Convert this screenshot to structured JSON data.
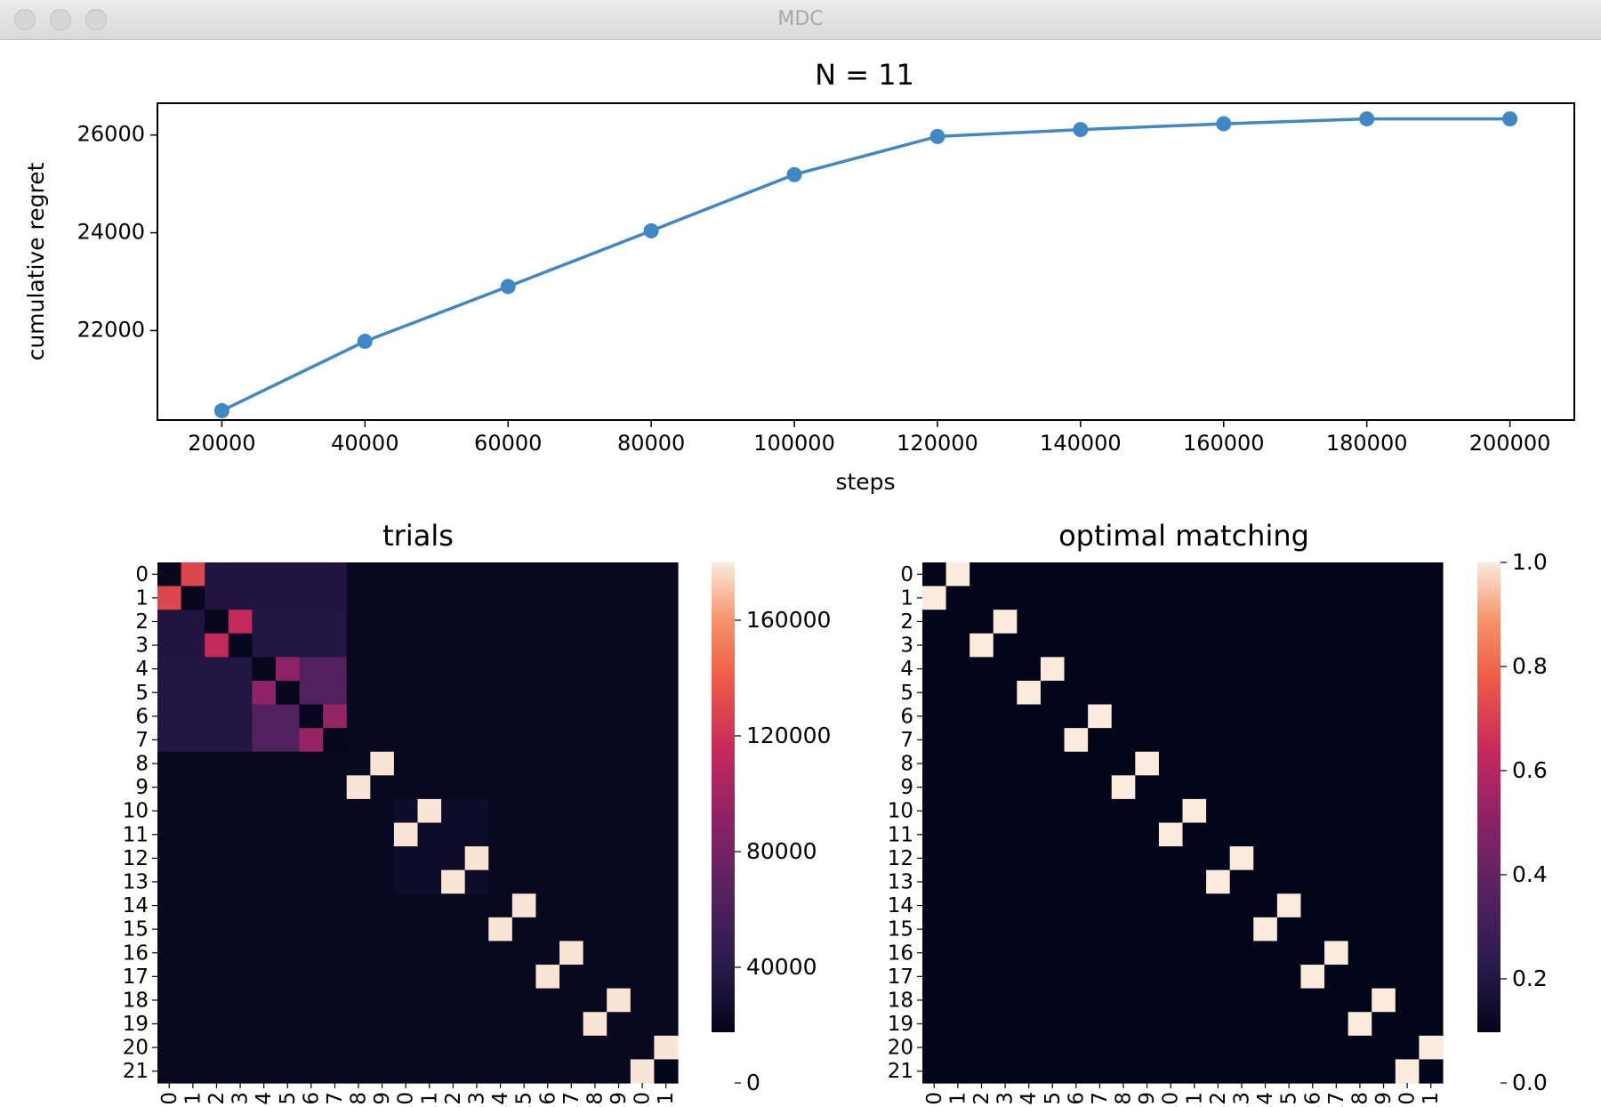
{
  "window": {
    "title": "MDC"
  },
  "chart_data": [
    {
      "type": "line",
      "title": "N = 11",
      "xlabel": "steps",
      "ylabel": "cumulative regret",
      "x": [
        20000,
        40000,
        60000,
        80000,
        100000,
        120000,
        140000,
        160000,
        180000,
        200000
      ],
      "series": [
        {
          "values": [
            20360,
            21780,
            22900,
            24040,
            25190,
            25970,
            26110,
            26230,
            26330,
            26330
          ]
        }
      ],
      "xticks": [
        "20000",
        "40000",
        "60000",
        "80000",
        "100000",
        "120000",
        "140000",
        "160000",
        "180000",
        "200000"
      ],
      "yticks": [
        "22000",
        "24000",
        "26000"
      ],
      "xlim": [
        11000,
        209000
      ],
      "ylim": [
        20170,
        26650
      ],
      "color": "#3f88c5",
      "grid": false
    },
    {
      "type": "heatmap",
      "title": "trials",
      "size": 22,
      "colormap": "rocket",
      "vmin": 0,
      "vmax": 180000,
      "colorbar_ticks": [
        "0",
        "40000",
        "80000",
        "120000",
        "160000"
      ],
      "colorbar_tick_values": [
        0,
        40000,
        80000,
        120000,
        160000
      ],
      "tick_labels": [
        "0",
        "1",
        "2",
        "3",
        "4",
        "5",
        "6",
        "7",
        "8",
        "9",
        "10",
        "11",
        "12",
        "13",
        "14",
        "15",
        "16",
        "17",
        "18",
        "19",
        "20",
        "21"
      ],
      "background_value": 3000,
      "blocks": [
        {
          "rows": [
            0,
            7
          ],
          "cols": [
            0,
            7
          ],
          "value": 20000
        },
        {
          "rows": [
            4,
            7
          ],
          "cols": [
            4,
            7
          ],
          "value": 48000
        },
        {
          "rows": [
            0,
            1
          ],
          "cols": [
            2,
            7
          ],
          "value": 19000
        },
        {
          "rows": [
            2,
            3
          ],
          "cols": [
            0,
            1
          ],
          "value": 19000
        },
        {
          "rows": [
            10,
            13
          ],
          "cols": [
            10,
            13
          ],
          "value": 8000
        }
      ],
      "cells": [
        {
          "row": 0,
          "col": 1,
          "value": 118000
        },
        {
          "row": 1,
          "col": 0,
          "value": 118000
        },
        {
          "row": 2,
          "col": 3,
          "value": 102000
        },
        {
          "row": 3,
          "col": 2,
          "value": 102000
        },
        {
          "row": 4,
          "col": 5,
          "value": 78000
        },
        {
          "row": 5,
          "col": 4,
          "value": 78000
        },
        {
          "row": 6,
          "col": 7,
          "value": 82000
        },
        {
          "row": 7,
          "col": 6,
          "value": 82000
        },
        {
          "row": 0,
          "col": 0,
          "value": 2000
        },
        {
          "row": 1,
          "col": 1,
          "value": 2000
        },
        {
          "row": 2,
          "col": 2,
          "value": 2000
        },
        {
          "row": 3,
          "col": 3,
          "value": 2000
        },
        {
          "row": 4,
          "col": 4,
          "value": 2000
        },
        {
          "row": 5,
          "col": 5,
          "value": 2000
        },
        {
          "row": 6,
          "col": 6,
          "value": 2000
        },
        {
          "row": 7,
          "col": 7,
          "value": 2000
        },
        {
          "row": 8,
          "col": 9,
          "value": 178000
        },
        {
          "row": 9,
          "col": 8,
          "value": 178000
        },
        {
          "row": 10,
          "col": 11,
          "value": 178000
        },
        {
          "row": 11,
          "col": 10,
          "value": 178000
        },
        {
          "row": 12,
          "col": 13,
          "value": 178000
        },
        {
          "row": 13,
          "col": 12,
          "value": 178000
        },
        {
          "row": 14,
          "col": 15,
          "value": 178000
        },
        {
          "row": 15,
          "col": 14,
          "value": 178000
        },
        {
          "row": 16,
          "col": 17,
          "value": 178000
        },
        {
          "row": 17,
          "col": 16,
          "value": 178000
        },
        {
          "row": 18,
          "col": 19,
          "value": 178000
        },
        {
          "row": 19,
          "col": 18,
          "value": 178000
        },
        {
          "row": 20,
          "col": 21,
          "value": 178000
        },
        {
          "row": 21,
          "col": 20,
          "value": 178000
        },
        {
          "row": 21,
          "col": 21,
          "value": 0
        }
      ]
    },
    {
      "type": "heatmap",
      "title": "optimal matching",
      "size": 22,
      "colormap": "rocket",
      "vmin": 0,
      "vmax": 1,
      "colorbar_ticks": [
        "0.0",
        "0.2",
        "0.4",
        "0.6",
        "0.8",
        "1.0"
      ],
      "colorbar_tick_values": [
        0,
        0.2,
        0.4,
        0.6,
        0.8,
        1.0
      ],
      "tick_labels": [
        "0",
        "1",
        "2",
        "3",
        "4",
        "5",
        "6",
        "7",
        "8",
        "9",
        "10",
        "11",
        "12",
        "13",
        "14",
        "15",
        "16",
        "17",
        "18",
        "19",
        "20",
        "21"
      ],
      "background_value": 0,
      "blocks": [],
      "cells": [
        {
          "row": 0,
          "col": 1,
          "value": 1
        },
        {
          "row": 1,
          "col": 0,
          "value": 1
        },
        {
          "row": 2,
          "col": 3,
          "value": 1
        },
        {
          "row": 3,
          "col": 2,
          "value": 1
        },
        {
          "row": 4,
          "col": 5,
          "value": 1
        },
        {
          "row": 5,
          "col": 4,
          "value": 1
        },
        {
          "row": 6,
          "col": 7,
          "value": 1
        },
        {
          "row": 7,
          "col": 6,
          "value": 1
        },
        {
          "row": 8,
          "col": 9,
          "value": 1
        },
        {
          "row": 9,
          "col": 8,
          "value": 1
        },
        {
          "row": 10,
          "col": 11,
          "value": 1
        },
        {
          "row": 11,
          "col": 10,
          "value": 1
        },
        {
          "row": 12,
          "col": 13,
          "value": 1
        },
        {
          "row": 13,
          "col": 12,
          "value": 1
        },
        {
          "row": 14,
          "col": 15,
          "value": 1
        },
        {
          "row": 15,
          "col": 14,
          "value": 1
        },
        {
          "row": 16,
          "col": 17,
          "value": 1
        },
        {
          "row": 17,
          "col": 16,
          "value": 1
        },
        {
          "row": 18,
          "col": 19,
          "value": 1
        },
        {
          "row": 19,
          "col": 18,
          "value": 1
        },
        {
          "row": 20,
          "col": 21,
          "value": 1
        },
        {
          "row": 21,
          "col": 20,
          "value": 1
        }
      ]
    }
  ]
}
